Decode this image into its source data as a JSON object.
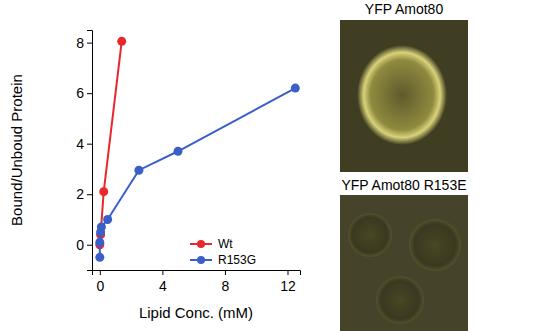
{
  "chart_data": {
    "type": "line",
    "x_label": "Lipid Conc. (mM)",
    "y_label": "Bound/Unboud Protein",
    "xlim": [
      -0.5,
      12.8
    ],
    "xticks": [
      0,
      4,
      8,
      12
    ],
    "ylim": [
      -1,
      8.5
    ],
    "yticks": [
      0,
      2,
      4,
      6,
      8
    ],
    "legend": "lower right",
    "marker": "circle",
    "series": [
      {
        "name": "Wt",
        "color": "#e8282b",
        "x": [
          0,
          0.05,
          0.25,
          1.4
        ],
        "values": [
          0,
          0.4,
          2.1,
          8.05
        ]
      },
      {
        "name": "R153G",
        "color": "#3b5fc8",
        "x": [
          0,
          0,
          0.05,
          0.1,
          0.5,
          2.5,
          5,
          12.5
        ],
        "values": [
          -0.5,
          0.1,
          0.5,
          0.7,
          1.0,
          2.95,
          3.7,
          6.2
        ]
      }
    ]
  },
  "panels": [
    {
      "label": "YFP Amot80"
    },
    {
      "label": "YFP Amot80 R153E"
    }
  ]
}
